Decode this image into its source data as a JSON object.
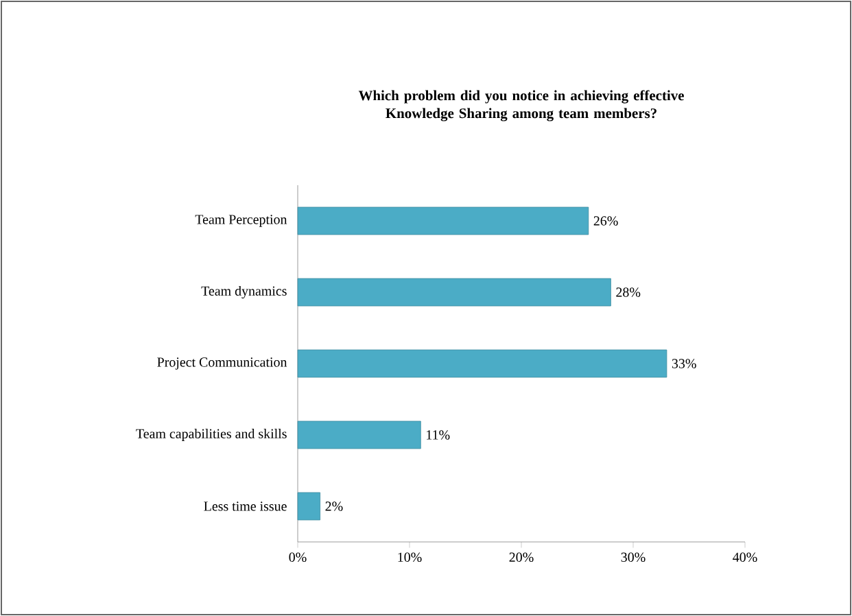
{
  "chart_data": {
    "type": "bar",
    "orientation": "horizontal",
    "title": "Which problem did you notice in  achieving effective Knowledge Sharing among team members?",
    "categories": [
      "Team Perception",
      "Team dynamics",
      "Project Communication",
      "Team capabilities and skills",
      "Less time issue"
    ],
    "values": [
      26,
      28,
      33,
      11,
      2
    ],
    "value_labels": [
      "26%",
      "28%",
      "33%",
      "11%",
      "2%"
    ],
    "color": "#4bacc6",
    "xlim": [
      0,
      40
    ],
    "xticks": [
      {
        "value": 0,
        "label": "0%"
      },
      {
        "value": 10,
        "label": "10%"
      },
      {
        "value": 20,
        "label": "20%"
      },
      {
        "value": 30,
        "label": "30%"
      },
      {
        "value": 40,
        "label": "40%"
      }
    ]
  }
}
